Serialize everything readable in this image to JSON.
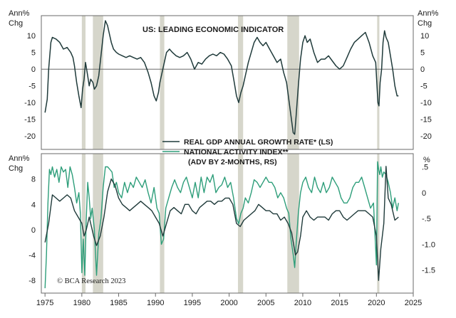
{
  "chart_data": [
    {
      "type": "line",
      "title": "US: LEADING ECONOMIC INDICATOR",
      "ylabel_left": "Ann%\nChg",
      "ylabel_right": "Ann%\nChg",
      "ylim": [
        -24,
        16
      ],
      "yticks": [
        10,
        5,
        0,
        -5,
        -10,
        -15,
        -20
      ],
      "ytick_labels": [
        "10",
        "5",
        "0",
        "-5",
        "-10",
        "-15",
        "-20"
      ],
      "zero_line": true,
      "series": [
        {
          "color": "#1f3a3a",
          "x": [
            1975.0,
            1975.3,
            1975.5,
            1975.8,
            1976.0,
            1976.5,
            1977.0,
            1977.5,
            1978.0,
            1978.5,
            1978.8,
            1979.0,
            1979.3,
            1979.6,
            1979.9,
            1980.1,
            1980.3,
            1980.5,
            1980.8,
            1981.0,
            1981.2,
            1981.5,
            1981.7,
            1982.0,
            1982.3,
            1982.6,
            1982.9,
            1983.2,
            1983.5,
            1983.8,
            1984.0,
            1984.3,
            1984.7,
            1985.0,
            1985.5,
            1986.0,
            1986.5,
            1987.0,
            1987.5,
            1988.0,
            1988.5,
            1989.0,
            1989.4,
            1989.8,
            1990.1,
            1990.4,
            1990.6,
            1990.9,
            1991.2,
            1991.5,
            1991.9,
            1992.3,
            1992.8,
            1993.3,
            1993.8,
            1994.3,
            1994.8,
            1995.3,
            1995.8,
            1996.3,
            1996.8,
            1997.3,
            1997.8,
            1998.3,
            1998.8,
            1999.3,
            1999.8,
            2000.3,
            2000.7,
            2001.0,
            2001.3,
            2001.6,
            2001.9,
            2002.2,
            2002.6,
            2003.0,
            2003.4,
            2003.8,
            2004.2,
            2004.6,
            2005.0,
            2005.5,
            2006.0,
            2006.5,
            2007.0,
            2007.4,
            2007.8,
            2008.1,
            2008.4,
            2008.7,
            2008.9,
            2009.1,
            2009.4,
            2009.7,
            2010.0,
            2010.3,
            2010.6,
            2011.0,
            2011.5,
            2012.0,
            2012.5,
            2013.0,
            2013.5,
            2014.0,
            2014.5,
            2015.0,
            2015.5,
            2016.0,
            2016.5,
            2017.0,
            2017.5,
            2018.0,
            2018.5,
            2019.0,
            2019.5,
            2019.9,
            2020.2,
            2020.35,
            2020.5,
            2020.7,
            2020.9,
            2021.1,
            2021.3,
            2021.6,
            2021.9,
            2022.2,
            2022.5,
            2022.8,
            2023.0
          ],
          "y": [
            -13,
            -9,
            0,
            8,
            9.5,
            9,
            8,
            6,
            6.5,
            5,
            3.5,
            1,
            -4,
            -8,
            -11.5,
            -6,
            -3,
            2,
            -2,
            -5,
            -3,
            -4,
            -6,
            -5,
            -2,
            4,
            10,
            14.5,
            13,
            10,
            8,
            6,
            5,
            4.5,
            4,
            3.5,
            4,
            3.5,
            3,
            3.5,
            2,
            -1,
            -4,
            -8,
            -9.5,
            -7,
            -4,
            -1,
            2,
            5,
            6,
            5,
            4,
            3.5,
            4,
            5,
            3,
            0,
            2,
            1.5,
            3,
            4,
            4.5,
            4,
            5,
            4.5,
            3,
            1,
            -4,
            -8,
            -10,
            -7,
            -5,
            -2,
            2,
            5,
            8,
            9.5,
            8,
            7,
            8,
            6,
            4,
            2,
            3,
            -1,
            -4,
            -9,
            -14,
            -19,
            -19.5,
            -14,
            -5,
            3,
            8,
            10,
            8,
            9,
            5,
            2,
            3,
            3,
            4,
            2.5,
            1,
            0,
            1,
            3.5,
            6,
            8,
            9,
            10,
            11,
            8,
            4,
            2,
            -10,
            -11,
            -4,
            0,
            8,
            11.5,
            9.5,
            8,
            4,
            0,
            -5,
            -8,
            -8
          ]
        }
      ],
      "recessions": [
        [
          1980.0,
          1980.5
        ],
        [
          1981.5,
          1982.9
        ],
        [
          1990.6,
          1991.2
        ],
        [
          2001.2,
          2001.9
        ],
        [
          2007.9,
          2009.5
        ],
        [
          2020.1,
          2020.4
        ]
      ]
    },
    {
      "type": "line",
      "ylabel_left": "Ann%\nChg",
      "ylabel_right": "%",
      "ylim_left": [
        -10,
        12
      ],
      "yticks_left": [
        8,
        4,
        0,
        -4,
        -8
      ],
      "ytick_labels_left": [
        "8",
        "4",
        "0",
        "-4",
        "-8"
      ],
      "ylim_right": [
        -1.945,
        0.755
      ],
      "yticks_right": [
        0.5,
        0,
        -0.5,
        -1.0,
        -1.5
      ],
      "ytick_labels_right": [
        ".5",
        "0",
        "-.5",
        "-1.0",
        "-1.5"
      ],
      "legend": [
        "REAL GDP ANNUAL GROWTH RATE* (LS)",
        "NATIONAL ACTIVITY INDEX**",
        "(ADV BY 2-MONTHS, RS)"
      ],
      "credit": "© BCA Research 2023",
      "xlim": [
        1974.5,
        2025
      ],
      "xticks": [
        1975,
        1980,
        1985,
        1990,
        1995,
        2000,
        2005,
        2010,
        2015,
        2020,
        2025
      ],
      "xtick_labels": [
        "1975",
        "1980",
        "1985",
        "1990",
        "1995",
        "2000",
        "2005",
        "2010",
        "2015",
        "2020",
        "2025"
      ],
      "series": [
        {
          "name": "REAL GDP ANNUAL GROWTH RATE* (LS)",
          "axis": "left",
          "color": "#1f3a3a",
          "x": [
            1975.0,
            1975.5,
            1976.0,
            1976.5,
            1977.0,
            1977.5,
            1978.0,
            1978.5,
            1979.0,
            1979.5,
            1980.0,
            1980.3,
            1980.6,
            1981.0,
            1981.3,
            1981.6,
            1982.0,
            1982.5,
            1983.0,
            1983.5,
            1984.0,
            1984.5,
            1985.0,
            1985.5,
            1986.0,
            1986.5,
            1987.0,
            1987.5,
            1988.0,
            1988.5,
            1989.0,
            1989.5,
            1990.0,
            1990.5,
            1991.0,
            1991.5,
            1992.0,
            1992.5,
            1993.0,
            1993.5,
            1994.0,
            1994.5,
            1995.0,
            1995.5,
            1996.0,
            1996.5,
            1997.0,
            1997.5,
            1998.0,
            1998.5,
            1999.0,
            1999.5,
            2000.0,
            2000.5,
            2001.0,
            2001.5,
            2002.0,
            2002.5,
            2003.0,
            2003.5,
            2004.0,
            2004.5,
            2005.0,
            2005.5,
            2006.0,
            2006.5,
            2007.0,
            2007.5,
            2008.0,
            2008.5,
            2009.0,
            2009.3,
            2009.7,
            2010.0,
            2010.5,
            2011.0,
            2011.5,
            2012.0,
            2012.5,
            2013.0,
            2013.5,
            2014.0,
            2014.5,
            2015.0,
            2015.5,
            2016.0,
            2016.5,
            2017.0,
            2017.5,
            2018.0,
            2018.5,
            2019.0,
            2019.5,
            2020.0,
            2020.3,
            2020.6,
            2021.0,
            2021.3,
            2021.6,
            2022.0,
            2022.5,
            2023.0
          ],
          "y": [
            -2,
            1,
            5.5,
            5,
            4.5,
            5,
            5.5,
            5,
            3,
            2,
            1,
            -1,
            0,
            2,
            0.5,
            -1,
            -2.5,
            -1,
            2,
            6,
            8,
            7,
            5,
            4,
            3.5,
            3,
            3.5,
            4,
            4.5,
            4,
            3.5,
            3,
            2,
            1,
            -1,
            1,
            3,
            3.5,
            3,
            2.5,
            4,
            4,
            3,
            2.5,
            3.5,
            4,
            4.5,
            4.5,
            4,
            4.5,
            4.5,
            5,
            5,
            4,
            1,
            0.5,
            1.5,
            2,
            2.5,
            3,
            4,
            3.5,
            3,
            3,
            2.5,
            2.5,
            1.5,
            2,
            1,
            -0.5,
            -4,
            -3.5,
            -1,
            2,
            3,
            2,
            1.5,
            2,
            2,
            2,
            1.5,
            2.5,
            3,
            3,
            2,
            1.5,
            2,
            2.5,
            3,
            3,
            3,
            2.5,
            2,
            -1,
            -8,
            -3,
            1,
            10,
            5,
            4,
            1.5,
            2
          ]
        },
        {
          "name": "NATIONAL ACTIVITY INDEX**",
          "axis": "right",
          "color": "#2e9e7a",
          "x": [
            1975.0,
            1975.2,
            1975.4,
            1975.6,
            1975.8,
            1976.0,
            1976.3,
            1976.6,
            1976.9,
            1977.2,
            1977.5,
            1977.8,
            1978.1,
            1978.4,
            1978.7,
            1979.0,
            1979.3,
            1979.6,
            1979.8,
            1980.0,
            1980.2,
            1980.4,
            1980.6,
            1980.8,
            1981.0,
            1981.2,
            1981.4,
            1981.7,
            1982.0,
            1982.3,
            1982.6,
            1982.9,
            1983.2,
            1983.5,
            1983.8,
            1984.1,
            1984.4,
            1984.7,
            1985.0,
            1985.4,
            1985.8,
            1986.2,
            1986.6,
            1987.0,
            1987.4,
            1987.8,
            1988.2,
            1988.6,
            1989.0,
            1989.4,
            1989.8,
            1990.2,
            1990.5,
            1990.8,
            1991.1,
            1991.4,
            1991.8,
            1992.2,
            1992.6,
            1993.0,
            1993.4,
            1993.8,
            1994.2,
            1994.6,
            1995.0,
            1995.4,
            1995.8,
            1996.2,
            1996.6,
            1997.0,
            1997.4,
            1997.8,
            1998.2,
            1998.6,
            1999.0,
            1999.4,
            1999.8,
            2000.2,
            2000.6,
            2001.0,
            2001.3,
            2001.6,
            2001.9,
            2002.2,
            2002.6,
            2003.0,
            2003.4,
            2003.8,
            2004.2,
            2004.6,
            2005.0,
            2005.4,
            2005.8,
            2006.2,
            2006.6,
            2007.0,
            2007.4,
            2007.8,
            2008.1,
            2008.4,
            2008.7,
            2008.9,
            2009.1,
            2009.4,
            2009.7,
            2010.0,
            2010.4,
            2010.8,
            2011.2,
            2011.6,
            2012.0,
            2012.4,
            2012.8,
            2013.2,
            2013.6,
            2014.0,
            2014.4,
            2014.8,
            2015.2,
            2015.6,
            2016.0,
            2016.4,
            2016.8,
            2017.2,
            2017.6,
            2018.0,
            2018.4,
            2018.8,
            2019.2,
            2019.6,
            2020.0,
            2020.15,
            2020.3,
            2020.45,
            2020.6,
            2020.8,
            2021.0,
            2021.3,
            2021.6,
            2021.9,
            2022.2,
            2022.5,
            2022.8,
            2023.0
          ],
          "y": [
            -1.85,
            -1.2,
            -0.2,
            0.45,
            0.35,
            0.5,
            0.3,
            0.45,
            0.2,
            0.5,
            0.4,
            0.45,
            0.1,
            0.5,
            0.35,
            0.1,
            -0.2,
            0.0,
            -0.4,
            -1.55,
            -0.9,
            -1.6,
            -0.5,
            0.2,
            -0.1,
            -0.5,
            -0.3,
            -0.7,
            -1.6,
            -0.8,
            -0.5,
            0.1,
            0.5,
            0.5,
            0.45,
            0.4,
            0.1,
            0.2,
            0.0,
            -0.1,
            0.2,
            0.0,
            0.2,
            0.1,
            0.3,
            0.2,
            0.1,
            0.25,
            0.0,
            -0.2,
            0.1,
            -0.3,
            -0.4,
            -1.0,
            -0.9,
            -0.3,
            -0.1,
            0.1,
            0.25,
            0.1,
            0.0,
            0.2,
            0.3,
            0.1,
            -0.1,
            0.2,
            -0.1,
            0.3,
            0.0,
            0.3,
            0.2,
            0.35,
            0.0,
            0.1,
            0.15,
            0.3,
            0.1,
            0.2,
            -0.1,
            -0.5,
            -0.6,
            -0.4,
            -0.3,
            -0.1,
            -0.2,
            0.0,
            0.25,
            0.2,
            0.1,
            0.2,
            0.3,
            0.2,
            0.2,
            0.1,
            -0.1,
            0.0,
            -0.1,
            -0.3,
            -0.4,
            -0.9,
            -1.2,
            -1.45,
            -1.0,
            -0.4,
            0.0,
            0.2,
            0.3,
            0.1,
            0.0,
            0.3,
            0.1,
            0.0,
            0.2,
            0.0,
            0.1,
            0.3,
            0.2,
            0.1,
            -0.1,
            -0.2,
            -0.2,
            -0.1,
            0.1,
            0.2,
            0.2,
            0.3,
            0.1,
            -0.1,
            -0.3,
            -0.2,
            -1.4,
            0.6,
            0.45,
            0.35,
            0.5,
            0.3,
            0.4,
            0.35,
            0.2,
            0.0,
            -0.3,
            -0.1,
            -0.35,
            -0.2
          ]
        }
      ],
      "recessions": [
        [
          1980.0,
          1980.5
        ],
        [
          1981.5,
          1982.9
        ],
        [
          1990.6,
          1991.2
        ],
        [
          2001.2,
          2001.9
        ],
        [
          2007.9,
          2009.5
        ],
        [
          2020.1,
          2020.4
        ]
      ]
    }
  ]
}
